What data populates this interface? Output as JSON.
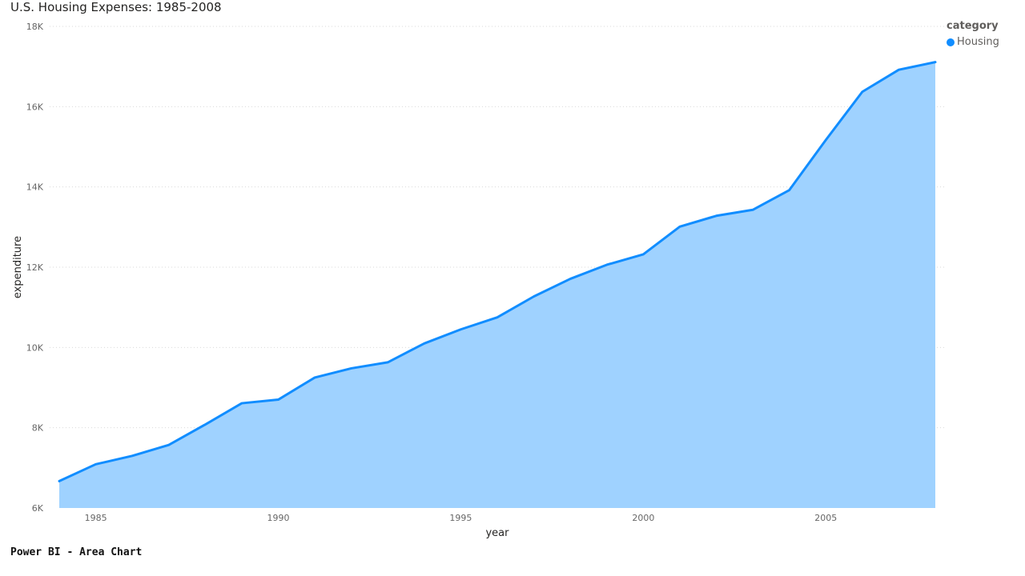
{
  "chart_data": {
    "type": "area",
    "title": "U.S. Housing Expenses: 1985-2008",
    "xlabel": "year",
    "ylabel": "expenditure",
    "legend_title": "category",
    "legend_position": "top-right",
    "grid": true,
    "ylim": [
      6000,
      18000
    ],
    "xlim": [
      1984,
      2008
    ],
    "x_ticks": [
      1985,
      1990,
      1995,
      2000,
      2005
    ],
    "y_ticks": [
      {
        "value": 6000,
        "label": "6K"
      },
      {
        "value": 8000,
        "label": "8K"
      },
      {
        "value": 10000,
        "label": "10K"
      },
      {
        "value": 12000,
        "label": "12K"
      },
      {
        "value": 14000,
        "label": "14K"
      },
      {
        "value": 16000,
        "label": "16K"
      },
      {
        "value": 18000,
        "label": "18K"
      }
    ],
    "series": [
      {
        "name": "Housing",
        "line_color": "#118DFF",
        "fill_color": "#9FD2FF",
        "x": [
          1984,
          1985,
          1986,
          1987,
          1988,
          1989,
          1990,
          1991,
          1992,
          1993,
          1994,
          1995,
          1996,
          1997,
          1998,
          1999,
          2000,
          2001,
          2002,
          2003,
          2004,
          2005,
          2006,
          2007,
          2008
        ],
        "values": [
          6670,
          7090,
          7300,
          7570,
          8080,
          8610,
          8700,
          9250,
          9480,
          9630,
          10100,
          10450,
          10750,
          11270,
          11710,
          12060,
          12320,
          13010,
          13280,
          13430,
          13920,
          15170,
          16370,
          16920,
          17110
        ]
      }
    ]
  },
  "footer": "Power BI - Area Chart"
}
